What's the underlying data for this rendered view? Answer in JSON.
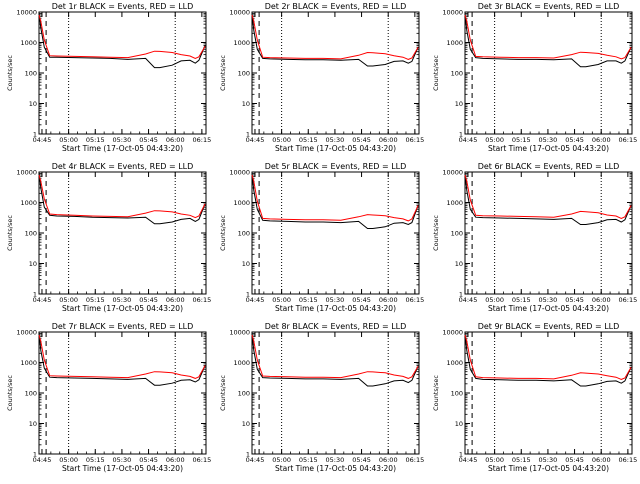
{
  "colors": {
    "background": "#ffffff",
    "axes": "#000000",
    "events_line": "#000000",
    "lld_line": "#ff0000"
  },
  "chart_data": [
    {
      "type": "line",
      "title": "Det 1r BLACK = Events, RED = LLD",
      "xlabel": "Start Time (17-Oct-05 04:43:20)",
      "ylabel": "Counts/sec",
      "y_scale": "log",
      "ylim": [
        1,
        10000
      ],
      "x_tick_labels": [
        "04:45",
        "05:00",
        "05:15",
        "05:30",
        "05:45",
        "06:00",
        "06:15"
      ],
      "y_tick_labels": [
        "1",
        "10",
        "100",
        "1000",
        "10000"
      ],
      "x_minutes": [
        0,
        1,
        3,
        6,
        10,
        20,
        30,
        40,
        50,
        60,
        65,
        68,
        75,
        80,
        85,
        88,
        90,
        93.5
      ],
      "series": [
        {
          "values": [
            10000,
            3000,
            700,
            330,
            330,
            320,
            310,
            300,
            280,
            300,
            150,
            150,
            180,
            250,
            260,
            210,
            260,
            800
          ]
        },
        {
          "values": [
            8000,
            5000,
            1200,
            370,
            360,
            350,
            340,
            330,
            320,
            420,
            520,
            510,
            470,
            400,
            360,
            300,
            340,
            750
          ]
        }
      ]
    },
    {
      "type": "line",
      "title": "Det 2r BLACK = Events, RED = LLD",
      "xlabel": "Start Time (17-Oct-05 04:43:20)",
      "ylabel": "Counts/sec",
      "y_scale": "log",
      "ylim": [
        1,
        10000
      ],
      "x_tick_labels": [
        "04:45",
        "05:00",
        "05:15",
        "05:30",
        "05:45",
        "06:00",
        "06:15"
      ],
      "y_tick_labels": [
        "1",
        "10",
        "100",
        "1000",
        "10000"
      ],
      "x_minutes": [
        0,
        1,
        3,
        6,
        10,
        20,
        30,
        40,
        50,
        60,
        65,
        68,
        75,
        80,
        85,
        88,
        90,
        93.5
      ],
      "series": [
        {
          "values": [
            9000,
            2500,
            600,
            300,
            290,
            280,
            270,
            270,
            260,
            280,
            170,
            170,
            190,
            240,
            250,
            210,
            240,
            700
          ]
        },
        {
          "values": [
            8000,
            5000,
            1200,
            330,
            320,
            310,
            300,
            300,
            290,
            380,
            470,
            460,
            430,
            370,
            330,
            280,
            310,
            700
          ]
        }
      ]
    },
    {
      "type": "line",
      "title": "Det 3r BLACK = Events, RED = LLD",
      "xlabel": "Start Time (17-Oct-05 04:43:20)",
      "ylabel": "Counts/sec",
      "y_scale": "log",
      "ylim": [
        1,
        10000
      ],
      "x_tick_labels": [
        "04:45",
        "05:00",
        "05:15",
        "05:30",
        "05:45",
        "06:00",
        "06:15"
      ],
      "y_tick_labels": [
        "1",
        "10",
        "100",
        "1000",
        "10000"
      ],
      "x_minutes": [
        0,
        1,
        3,
        6,
        10,
        20,
        30,
        40,
        50,
        60,
        65,
        68,
        75,
        80,
        85,
        88,
        90,
        93.5
      ],
      "series": [
        {
          "values": [
            9000,
            2500,
            600,
            320,
            300,
            290,
            280,
            280,
            270,
            290,
            160,
            160,
            190,
            250,
            250,
            210,
            250,
            700
          ]
        },
        {
          "values": [
            8000,
            5000,
            1200,
            350,
            340,
            330,
            320,
            320,
            310,
            400,
            480,
            470,
            440,
            380,
            340,
            290,
            320,
            700
          ]
        }
      ]
    },
    {
      "type": "line",
      "title": "Det 4r BLACK = Events, RED = LLD",
      "xlabel": "Start Time (17-Oct-05 04:43:20)",
      "ylabel": "Counts/sec",
      "y_scale": "log",
      "ylim": [
        1,
        10000
      ],
      "x_tick_labels": [
        "04:45",
        "05:00",
        "05:15",
        "05:30",
        "05:45",
        "06:00",
        "06:15"
      ],
      "y_tick_labels": [
        "1",
        "10",
        "100",
        "1000",
        "10000"
      ],
      "x_minutes": [
        0,
        1,
        3,
        6,
        10,
        20,
        30,
        40,
        50,
        60,
        65,
        68,
        75,
        80,
        85,
        88,
        90,
        93.5
      ],
      "series": [
        {
          "values": [
            10000,
            3000,
            700,
            380,
            360,
            350,
            330,
            320,
            310,
            330,
            200,
            200,
            230,
            280,
            300,
            240,
            280,
            900
          ]
        },
        {
          "values": [
            8000,
            5000,
            1300,
            420,
            400,
            380,
            360,
            350,
            340,
            450,
            540,
            530,
            490,
            420,
            380,
            320,
            360,
            900
          ]
        }
      ]
    },
    {
      "type": "line",
      "title": "Det 5r BLACK = Events, RED = LLD",
      "xlabel": "Start Time (17-Oct-05 04:43:20)",
      "ylabel": "Counts/sec",
      "y_scale": "log",
      "ylim": [
        1,
        10000
      ],
      "x_tick_labels": [
        "04:45",
        "05:00",
        "05:15",
        "05:30",
        "05:45",
        "06:00",
        "06:15"
      ],
      "y_tick_labels": [
        "1",
        "10",
        "100",
        "1000",
        "10000"
      ],
      "x_minutes": [
        0,
        1,
        3,
        6,
        10,
        20,
        30,
        40,
        50,
        60,
        65,
        68,
        75,
        80,
        85,
        88,
        90,
        93.5
      ],
      "series": [
        {
          "values": [
            9000,
            2500,
            600,
            260,
            250,
            240,
            230,
            230,
            220,
            240,
            140,
            140,
            160,
            210,
            220,
            190,
            220,
            800
          ]
        },
        {
          "values": [
            8000,
            5000,
            1100,
            300,
            290,
            280,
            270,
            270,
            260,
            340,
            400,
            390,
            370,
            320,
            290,
            250,
            290,
            800
          ]
        }
      ]
    },
    {
      "type": "line",
      "title": "Det 6r BLACK = Events, RED = LLD",
      "xlabel": "Start Time (17-Oct-05 04:43:20)",
      "ylabel": "Counts/sec",
      "y_scale": "log",
      "ylim": [
        1,
        10000
      ],
      "x_tick_labels": [
        "04:45",
        "05:00",
        "05:15",
        "05:30",
        "05:45",
        "06:00",
        "06:15"
      ],
      "y_tick_labels": [
        "1",
        "10",
        "100",
        "1000",
        "10000"
      ],
      "x_minutes": [
        0,
        1,
        3,
        6,
        10,
        20,
        30,
        40,
        50,
        60,
        65,
        68,
        75,
        80,
        85,
        88,
        90,
        93.5
      ],
      "series": [
        {
          "values": [
            9000,
            2500,
            600,
            330,
            320,
            310,
            300,
            290,
            280,
            300,
            190,
            190,
            220,
            270,
            280,
            230,
            270,
            800
          ]
        },
        {
          "values": [
            8000,
            5000,
            1200,
            380,
            370,
            360,
            350,
            340,
            330,
            420,
            510,
            500,
            460,
            390,
            360,
            300,
            340,
            800
          ]
        }
      ]
    },
    {
      "type": "line",
      "title": "Det 7r BLACK = Events, RED = LLD",
      "xlabel": "Start Time (17-Oct-05 04:43:20)",
      "ylabel": "Counts/sec",
      "y_scale": "log",
      "ylim": [
        1,
        10000
      ],
      "x_tick_labels": [
        "04:45",
        "05:00",
        "05:15",
        "05:30",
        "05:45",
        "06:00",
        "06:15"
      ],
      "y_tick_labels": [
        "1",
        "10",
        "100",
        "1000",
        "10000"
      ],
      "x_minutes": [
        0,
        1,
        3,
        6,
        10,
        20,
        30,
        40,
        50,
        60,
        65,
        68,
        75,
        80,
        85,
        88,
        90,
        93.5
      ],
      "series": [
        {
          "values": [
            10000,
            2500,
            650,
            330,
            320,
            310,
            300,
            290,
            280,
            300,
            180,
            180,
            210,
            260,
            270,
            230,
            270,
            800
          ]
        },
        {
          "values": [
            8000,
            5000,
            1200,
            370,
            360,
            350,
            340,
            330,
            320,
            420,
            500,
            490,
            460,
            390,
            350,
            300,
            340,
            800
          ]
        }
      ]
    },
    {
      "type": "line",
      "title": "Det 8r BLACK = Events, RED = LLD",
      "xlabel": "Start Time (17-Oct-05 04:43:20)",
      "ylabel": "Counts/sec",
      "y_scale": "log",
      "ylim": [
        1,
        10000
      ],
      "x_tick_labels": [
        "04:45",
        "05:00",
        "05:15",
        "05:30",
        "05:45",
        "06:00",
        "06:15"
      ],
      "y_tick_labels": [
        "1",
        "10",
        "100",
        "1000",
        "10000"
      ],
      "x_minutes": [
        0,
        1,
        3,
        6,
        10,
        20,
        30,
        40,
        50,
        60,
        65,
        68,
        75,
        80,
        85,
        88,
        90,
        93.5
      ],
      "series": [
        {
          "values": [
            9000,
            2500,
            600,
            320,
            310,
            300,
            290,
            290,
            280,
            300,
            170,
            170,
            200,
            250,
            260,
            220,
            260,
            750
          ]
        },
        {
          "values": [
            8000,
            5000,
            1200,
            360,
            350,
            340,
            330,
            330,
            320,
            420,
            500,
            490,
            460,
            390,
            350,
            300,
            340,
            750
          ]
        }
      ]
    },
    {
      "type": "line",
      "title": "Det 9r BLACK = Events, RED = LLD",
      "xlabel": "Start Time (17-Oct-05 04:43:20)",
      "ylabel": "Counts/sec",
      "y_scale": "log",
      "ylim": [
        1,
        10000
      ],
      "x_tick_labels": [
        "04:45",
        "05:00",
        "05:15",
        "05:30",
        "05:45",
        "06:00",
        "06:15"
      ],
      "y_tick_labels": [
        "1",
        "10",
        "100",
        "1000",
        "10000"
      ],
      "x_minutes": [
        0,
        1,
        3,
        6,
        10,
        20,
        30,
        40,
        50,
        60,
        65,
        68,
        75,
        80,
        85,
        88,
        90,
        93.5
      ],
      "series": [
        {
          "values": [
            9000,
            2500,
            600,
            300,
            280,
            270,
            260,
            260,
            250,
            270,
            170,
            170,
            200,
            240,
            250,
            210,
            250,
            700
          ]
        },
        {
          "values": [
            8000,
            5000,
            1200,
            340,
            320,
            310,
            300,
            300,
            290,
            380,
            460,
            450,
            420,
            370,
            330,
            280,
            310,
            700
          ]
        }
      ]
    }
  ]
}
